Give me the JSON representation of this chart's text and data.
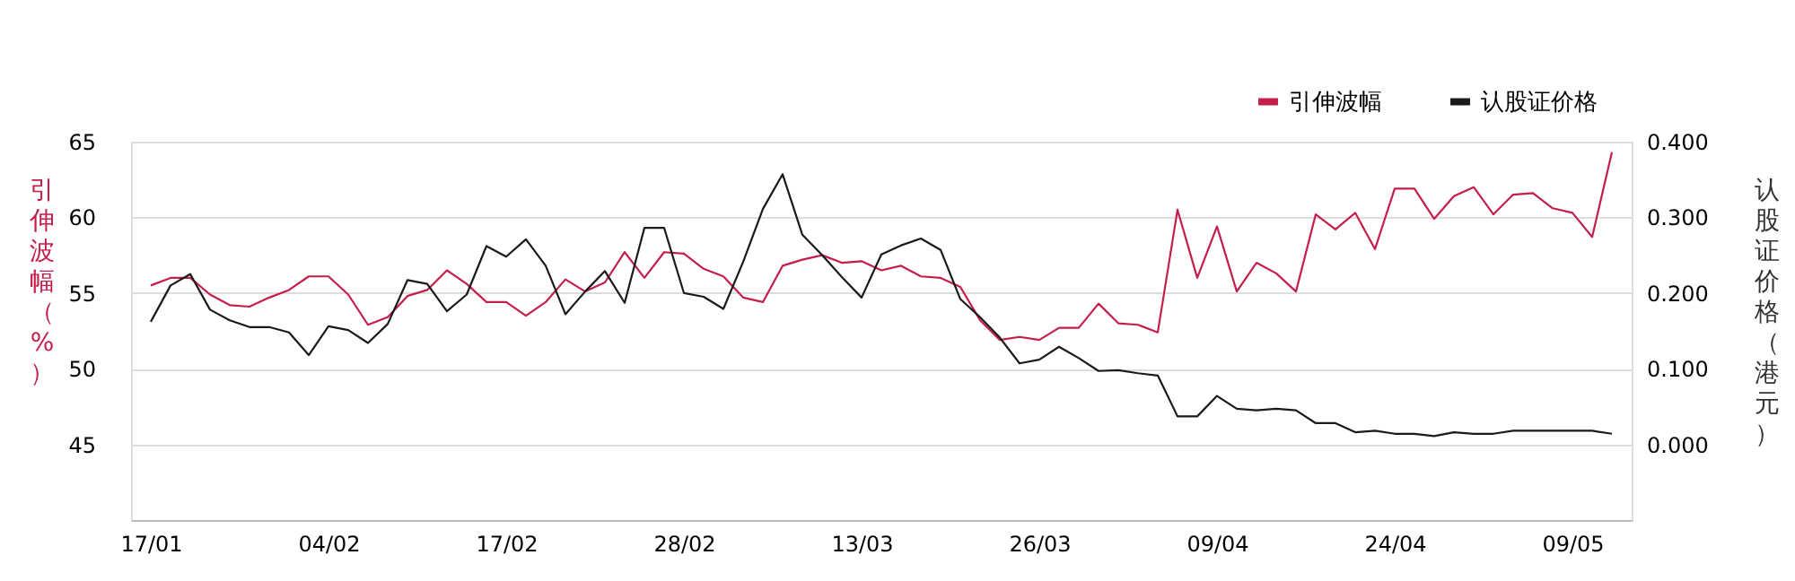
{
  "chart_data": {
    "type": "line",
    "ylabel": "引伸波幅（%）",
    "y2label": "认股证价格（港元）",
    "categories": [
      "17/01",
      null,
      null,
      null,
      null,
      null,
      null,
      null,
      null,
      "04/02",
      null,
      null,
      null,
      null,
      null,
      null,
      null,
      null,
      "17/02",
      null,
      null,
      null,
      null,
      null,
      null,
      null,
      null,
      "28/02",
      null,
      null,
      null,
      null,
      null,
      null,
      null,
      null,
      "13/03",
      null,
      null,
      null,
      null,
      null,
      null,
      null,
      null,
      "26/03",
      null,
      null,
      null,
      null,
      null,
      null,
      null,
      null,
      "09/04",
      null,
      null,
      null,
      null,
      null,
      null,
      null,
      null,
      "24/04",
      null,
      null,
      null,
      null,
      null,
      null,
      null,
      null,
      "09/05",
      null,
      null
    ],
    "series": [
      {
        "name": "引伸波幅",
        "color": "#c41e4a",
        "values": [
          55.5,
          56.0,
          56.0,
          54.9,
          54.2,
          54.1,
          54.7,
          55.2,
          56.1,
          56.1,
          54.9,
          52.9,
          53.4,
          54.8,
          55.2,
          56.5,
          55.6,
          54.4,
          54.4,
          53.5,
          54.4,
          55.9,
          55.1,
          55.7,
          57.7,
          56.0,
          57.7,
          57.6,
          56.6,
          56.1,
          54.7,
          54.4,
          56.8,
          57.2,
          57.5,
          57.0,
          57.1,
          56.5,
          56.8,
          56.1,
          56.0,
          55.4,
          53.2,
          51.9,
          52.1,
          51.9,
          52.7,
          52.7,
          54.3,
          53.0,
          52.9,
          52.4,
          60.5,
          56.0,
          59.4,
          55.1,
          57.0,
          56.3,
          55.1,
          60.2,
          59.2,
          60.3,
          57.9,
          61.9,
          61.9,
          59.9,
          61.4,
          62.0,
          60.2,
          61.5,
          61.6,
          60.6,
          60.3,
          58.7,
          64.3
        ]
      },
      {
        "name": "认股证价格",
        "color": "#1a1a1a",
        "axis": "y2",
        "values": [
          0.162,
          0.21,
          0.225,
          0.178,
          0.164,
          0.155,
          0.155,
          0.148,
          0.118,
          0.156,
          0.151,
          0.134,
          0.159,
          0.217,
          0.212,
          0.176,
          0.198,
          0.262,
          0.248,
          0.271,
          0.236,
          0.172,
          0.202,
          0.229,
          0.187,
          0.286,
          0.286,
          0.2,
          0.195,
          0.179,
          0.241,
          0.311,
          0.357,
          0.277,
          0.25,
          0.221,
          0.194,
          0.251,
          0.263,
          0.272,
          0.257,
          0.192,
          0.168,
          0.141,
          0.107,
          0.112,
          0.129,
          0.114,
          0.097,
          0.098,
          0.094,
          0.091,
          0.037,
          0.037,
          0.064,
          0.047,
          0.045,
          0.047,
          0.045,
          0.028,
          0.028,
          0.016,
          0.018,
          0.014,
          0.014,
          0.011,
          0.016,
          0.014,
          0.014,
          0.018,
          0.018,
          0.018,
          0.018,
          0.018,
          0.014
        ]
      }
    ],
    "ylim": [
      40,
      65
    ],
    "yticks": [
      45,
      50,
      55,
      60,
      65
    ],
    "y2lim": [
      -0.1,
      0.4
    ],
    "y2ticks": [
      {
        "value": 0,
        "label": "0.000"
      },
      {
        "value": 0.1,
        "label": "0.100"
      },
      {
        "value": 0.2,
        "label": "0.200"
      },
      {
        "value": 0.3,
        "label": "0.300"
      },
      {
        "value": 0.4,
        "label": "0.400"
      }
    ],
    "grid": "y",
    "legend": "top right",
    "marker": "none",
    "line_style": "solid"
  }
}
